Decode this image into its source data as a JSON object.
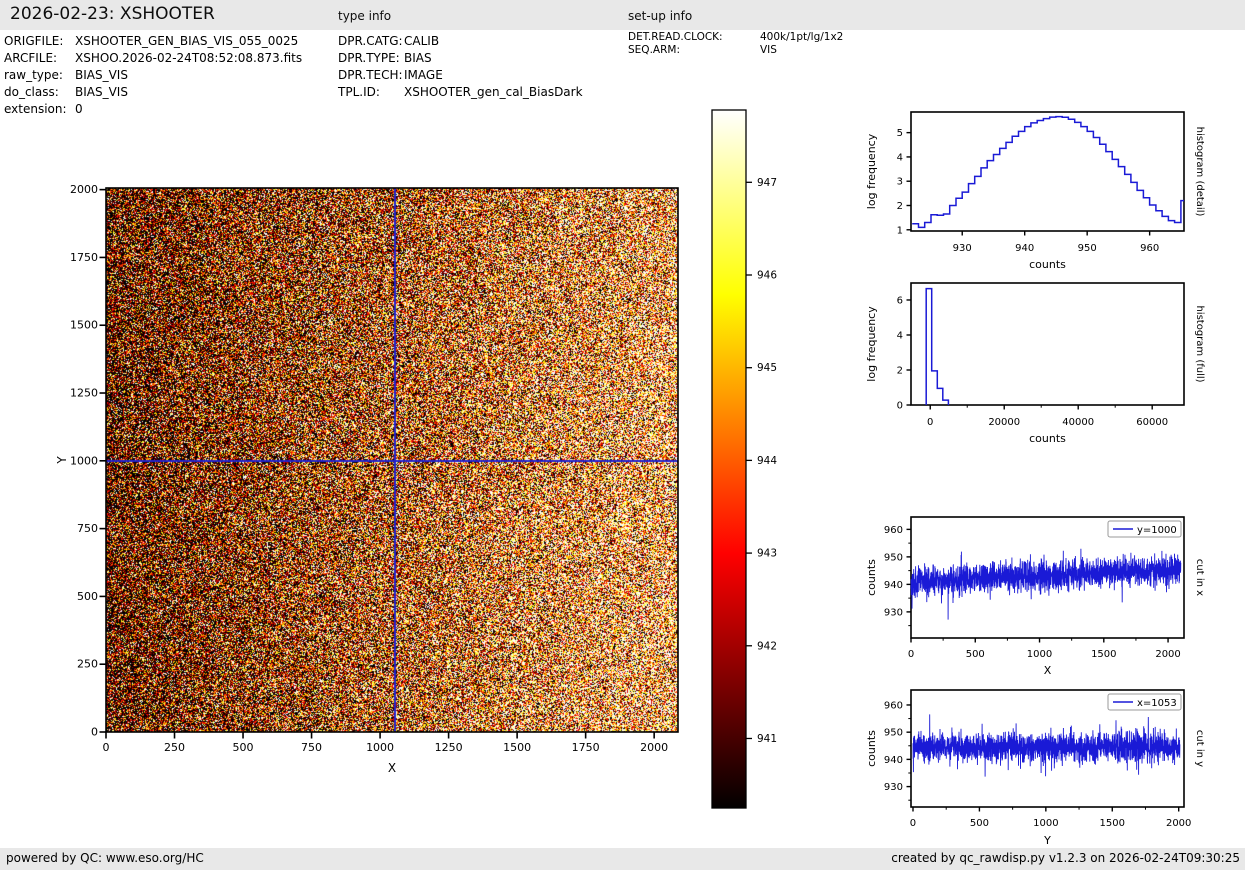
{
  "header": {
    "title": "2026-02-23: XSHOOTER",
    "type_info_label": "type info",
    "setup_info_label": "set-up info"
  },
  "file_info": {
    "rows": [
      {
        "label": "ORIGFILE:",
        "value": "XSHOOTER_GEN_BIAS_VIS_055_0025"
      },
      {
        "label": "ARCFILE:",
        "value": "XSHOO.2026-02-24T08:52:08.873.fits"
      },
      {
        "label": "raw_type:",
        "value": "BIAS_VIS"
      },
      {
        "label": "do_class:",
        "value": "BIAS_VIS"
      },
      {
        "label": "extension:",
        "value": "0"
      }
    ]
  },
  "type_info": {
    "rows": [
      {
        "label": "DPR.CATG:",
        "value": "CALIB"
      },
      {
        "label": "DPR.TYPE:",
        "value": "BIAS"
      },
      {
        "label": "DPR.TECH:",
        "value": "IMAGE"
      },
      {
        "label": "TPL.ID:",
        "value": "XSHOOTER_gen_cal_BiasDark"
      }
    ]
  },
  "setup_info": {
    "rows": [
      {
        "label": "DET.READ.CLOCK:",
        "value": "400k/1pt/lg/1x2"
      },
      {
        "label": "SEQ.ARM:",
        "value": "VIS"
      }
    ]
  },
  "footer": {
    "left": "powered by QC: www.eso.org/HC",
    "right": "created by qc_rawdisp.py v1.2.3 on 2026-02-24T09:30:25"
  },
  "colors": {
    "header_bg": "#e8e8e8",
    "line_blue": "#1a1ad6",
    "crosshair_blue": "#2222cc",
    "axis_black": "#000000",
    "legend_border": "#9a9a9a"
  },
  "chart_data": [
    {
      "id": "bias_image",
      "type": "heatmap",
      "description": "raw XSHOOTER VIS bias frame: Gaussian read noise ~943 +/- 4 ADU, level rising from ~941 at left edge to ~946 at bottom right, crosshair marks cut positions",
      "xlabel": "X",
      "ylabel": "Y",
      "xlim": [
        0,
        2087
      ],
      "ylim": [
        0,
        2006
      ],
      "xticks": [
        0,
        250,
        500,
        750,
        1000,
        1250,
        1500,
        1750,
        2000
      ],
      "yticks": [
        0,
        250,
        500,
        750,
        1000,
        1250,
        1500,
        1750,
        2000
      ],
      "colormap": "hot",
      "clim": [
        940.25,
        947.78
      ],
      "colorbar_ticks": [
        941,
        942,
        943,
        944,
        945,
        946,
        947
      ],
      "crosshair": {
        "x": 1053,
        "y": 1000
      },
      "noise": {
        "seed": 7,
        "sigma": 4.2,
        "mean_left": 941.0,
        "mean_right_gain": 4.3,
        "bottom_gain": 0.6
      }
    },
    {
      "id": "hist_detail",
      "type": "bar",
      "side_label": "histogram (detail)",
      "xlabel": "counts",
      "ylabel": "log frequency",
      "xlim": [
        921.8,
        965.5
      ],
      "ylim": [
        0.95,
        5.85
      ],
      "xticks": [
        930,
        940,
        950,
        960
      ],
      "yticks": [
        1,
        2,
        3,
        4,
        5
      ],
      "bin_start": 922,
      "bin_width": 1,
      "log_frequency": [
        1.25,
        1.1,
        1.3,
        1.62,
        1.6,
        1.65,
        2.0,
        2.3,
        2.55,
        2.9,
        3.2,
        3.55,
        3.85,
        4.1,
        4.35,
        4.6,
        4.85,
        5.05,
        5.25,
        5.4,
        5.5,
        5.58,
        5.64,
        5.66,
        5.63,
        5.55,
        5.42,
        5.25,
        5.05,
        4.8,
        4.52,
        4.22,
        3.9,
        3.6,
        3.28,
        2.95,
        2.62,
        2.32,
        2.02,
        1.78,
        1.55,
        1.38,
        1.3,
        2.2
      ]
    },
    {
      "id": "hist_full",
      "type": "bar",
      "side_label": "histogram (full)",
      "xlabel": "counts",
      "ylabel": "log frequency",
      "xlim": [
        -5200,
        68600
      ],
      "ylim": [
        0,
        6.97
      ],
      "xticks": [
        0,
        20000,
        40000,
        60000
      ],
      "xticks_minor": [
        10000,
        30000,
        50000
      ],
      "yticks": [
        0,
        2,
        4,
        6
      ],
      "bin_edges": [
        -1100,
        400,
        1900,
        3400,
        4900
      ],
      "log_frequency": [
        6.65,
        1.95,
        0.95,
        0.28
      ]
    },
    {
      "id": "cut_x",
      "type": "line",
      "legend": "y=1000",
      "side_label": "cut in x",
      "xlabel": "X",
      "ylabel": "counts",
      "xlim": [
        0,
        2124
      ],
      "ylim": [
        920.5,
        964.5
      ],
      "xticks": [
        0,
        500,
        1000,
        1500,
        2000
      ],
      "xticks_minor": [
        250,
        750,
        1250,
        1750
      ],
      "yticks": [
        930,
        940,
        950,
        960
      ],
      "yticks_minor": [
        925,
        935,
        945,
        955
      ],
      "series": {
        "n": 2100,
        "seed": 42,
        "mean_start": 941.0,
        "mean_end": 945.4,
        "sigma": 2.7,
        "spike_prob": 0.012,
        "spike_scale": 6
      }
    },
    {
      "id": "cut_y",
      "type": "line",
      "legend": "x=1053",
      "side_label": "cut in y",
      "xlabel": "Y",
      "ylabel": "counts",
      "xlim": [
        -15,
        2040
      ],
      "ylim": [
        922.5,
        965.5
      ],
      "xticks": [
        0,
        500,
        1000,
        1500,
        2000
      ],
      "xticks_minor": [
        250,
        750,
        1250,
        1750
      ],
      "yticks": [
        930,
        940,
        950,
        960
      ],
      "yticks_minor": [
        925,
        935,
        945,
        955
      ],
      "series": {
        "n": 2010,
        "seed": 99,
        "mean_start": 944.4,
        "mean_end": 944.6,
        "sigma": 2.7,
        "spike_prob": 0.012,
        "spike_scale": 6
      }
    }
  ]
}
